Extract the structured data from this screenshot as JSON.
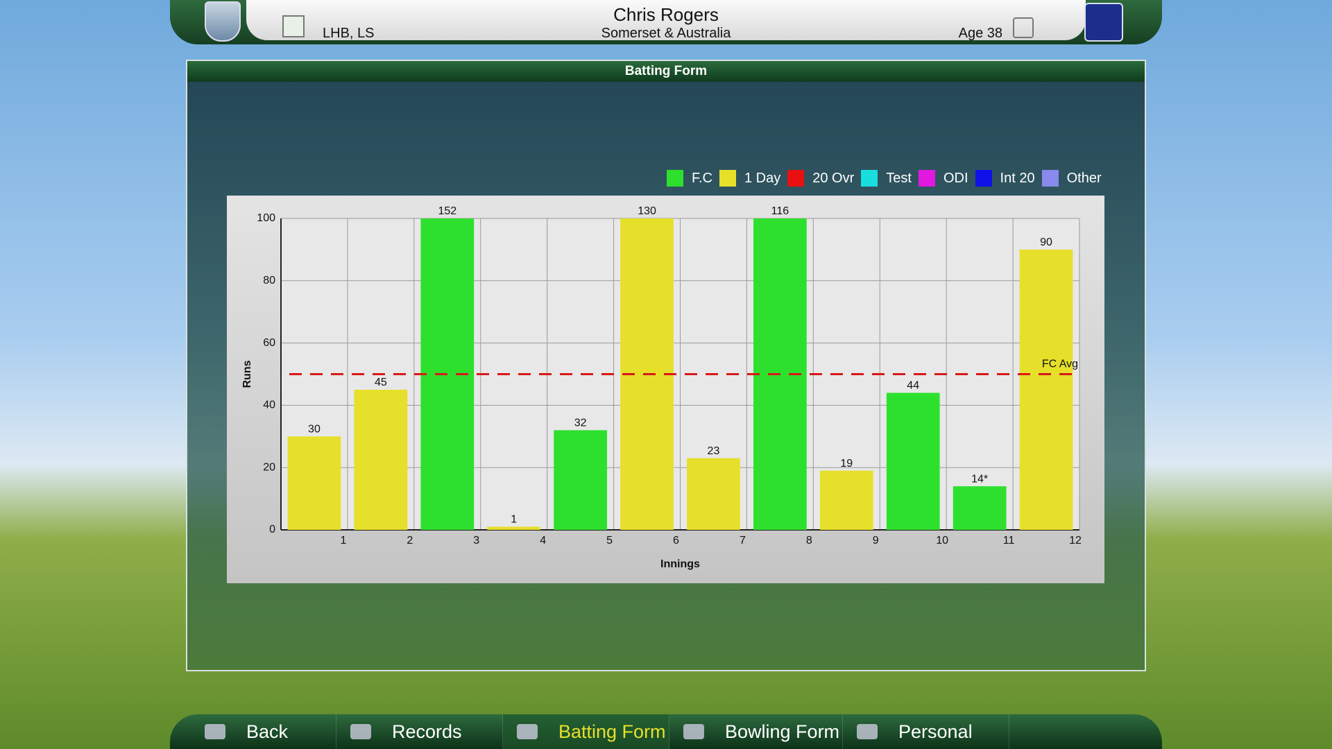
{
  "header": {
    "name": "Chris Rogers",
    "team": "Somerset & Australia",
    "style": "LHB, LS",
    "age": "Age 38"
  },
  "panel_title": "Batting Form",
  "chart_data": {
    "type": "bar",
    "x_label": "Innings",
    "y_label": "Runs",
    "categories": [
      1,
      2,
      3,
      4,
      5,
      6,
      7,
      8,
      9,
      10,
      11,
      12
    ],
    "series": [
      {
        "name": "F.C",
        "color": "#2ee02e",
        "values": [
          null,
          null,
          152,
          null,
          32,
          null,
          null,
          116,
          null,
          44,
          14,
          null
        ],
        "value_labels": [
          null,
          null,
          "152",
          null,
          "32",
          null,
          null,
          "116",
          null,
          "44",
          "14*",
          null
        ]
      },
      {
        "name": "1 Day",
        "color": "#e6e02a",
        "values": [
          30,
          45,
          null,
          1,
          null,
          130,
          23,
          null,
          19,
          null,
          null,
          90
        ],
        "value_labels": [
          "30",
          "45",
          null,
          "1",
          null,
          "130",
          "23",
          null,
          "19",
          null,
          null,
          "90"
        ]
      },
      {
        "name": "20 Ovr",
        "color": "#e81010",
        "values": [
          null,
          null,
          null,
          null,
          null,
          null,
          null,
          null,
          null,
          null,
          null,
          null
        ]
      },
      {
        "name": "Test",
        "color": "#18dede",
        "values": [
          null,
          null,
          null,
          null,
          null,
          null,
          null,
          null,
          null,
          null,
          null,
          null
        ]
      },
      {
        "name": "ODI",
        "color": "#e018e0",
        "values": [
          null,
          null,
          null,
          null,
          null,
          null,
          null,
          null,
          null,
          null,
          null,
          null
        ]
      },
      {
        "name": "Int 20",
        "color": "#1010e8",
        "values": [
          null,
          null,
          null,
          null,
          null,
          null,
          null,
          null,
          null,
          null,
          null,
          null
        ]
      },
      {
        "name": "Other",
        "color": "#8a8aee",
        "values": [
          null,
          null,
          null,
          null,
          null,
          null,
          null,
          null,
          null,
          null,
          null,
          null
        ]
      }
    ],
    "ylim": [
      0,
      100
    ],
    "yticks": [
      0,
      20,
      40,
      60,
      80,
      100
    ],
    "grid": true,
    "reference_line": {
      "value": 50,
      "label": "FC Avg",
      "color": "#d81818"
    }
  },
  "nav": {
    "items": [
      "Back",
      "Records",
      "Batting Form",
      "Bowling Form",
      "Personal"
    ],
    "active": 2
  }
}
